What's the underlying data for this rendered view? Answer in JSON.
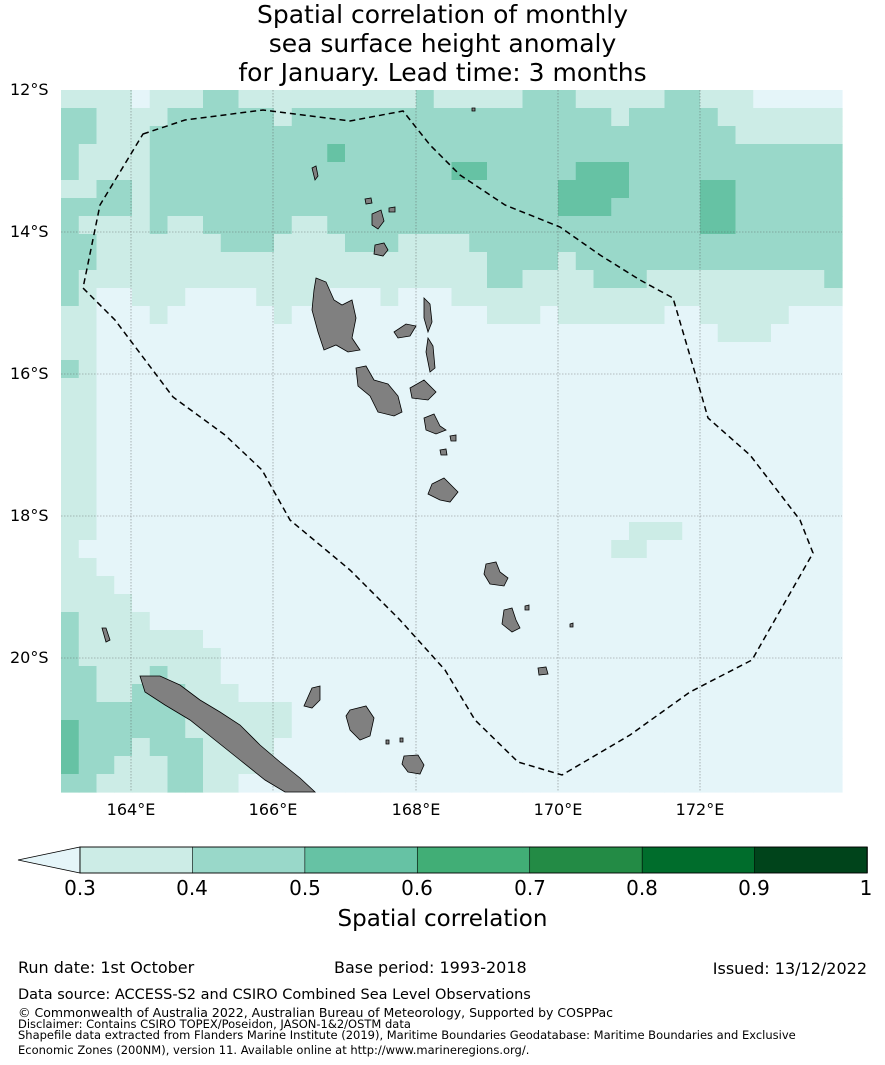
{
  "title_lines": [
    "Spatial correlation of monthly",
    "sea surface height anomaly",
    "for January. Lead time: 3 months"
  ],
  "map": {
    "lat_labels": [
      "12°S",
      "14°S",
      "16°S",
      "18°S",
      "20°S"
    ],
    "lon_labels": [
      "164°E",
      "166°E",
      "168°E",
      "170°E",
      "172°E"
    ],
    "lon_range": [
      163,
      174
    ],
    "lat_range": [
      -21.9,
      -12
    ],
    "land_color": "#808080",
    "eez_boundary_style": "dashed"
  },
  "colorbar": {
    "title": "Spatial correlation",
    "tick_labels": [
      "0.3",
      "0.4",
      "0.5",
      "0.6",
      "0.7",
      "0.8",
      "0.9",
      "1"
    ],
    "below_color": "#e5f5f9",
    "colors": [
      "#ccece6",
      "#99d8c9",
      "#66c2a4",
      "#41ae76",
      "#238b45",
      "#006d2c",
      "#00441b"
    ]
  },
  "footer": {
    "run_date": "Run date: 1st October",
    "base_period": "Base period: 1993-2018",
    "issued": "Issued: 13/12/2022",
    "data_source": "Data source: ACCESS-S2 and CSIRO Combined Sea Level Observations",
    "copyright": "© Commonwealth of Australia 2022, Australian Bureau of Meteorology, Supported by COSPPac",
    "disclaimer": "Disclaimer: Contains CSIRO TOPEX/Poseidon, JASON-1&2/OSTM data",
    "shapefile_1": "Shapefile data extracted from Flanders Marine Institute (2019), Maritime Boundaries Geodatabase: Maritime Boundaries and Exclusive",
    "shapefile_2": "Economic Zones (200NM), version 11. Available online at http://www.marineregions.org/."
  }
}
